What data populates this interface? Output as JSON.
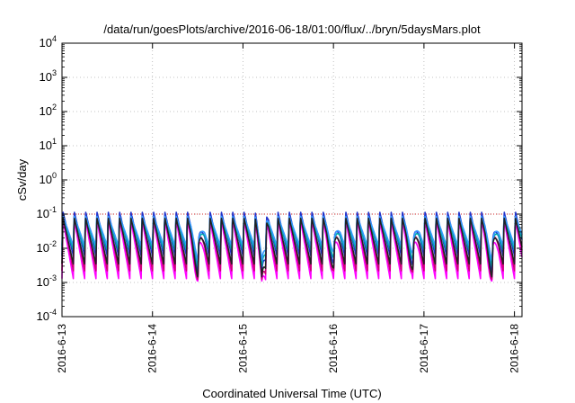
{
  "chart_data": {
    "type": "line",
    "title": "/data/run/goesPlots/archive/2016-06-18/01:00/flux/../bryn/5daysMars.plot",
    "xlabel": "Coordinated Universal Time (UTC)",
    "ylabel": "cSv/day",
    "yscale": "log",
    "ylim": [
      0.0001,
      10000
    ],
    "xlim": [
      "2016-06-13",
      "2016-06-18T02:00"
    ],
    "grid": true,
    "xticks": [
      "2016-6-13",
      "2016-6-14",
      "2016-6-15",
      "2016-6-16",
      "2016-6-17",
      "2016-6-18"
    ],
    "yticks": [
      {
        "base": "10",
        "exp": "-4",
        "value": 0.0001
      },
      {
        "base": "10",
        "exp": "-3",
        "value": 0.001
      },
      {
        "base": "10",
        "exp": "-2",
        "value": 0.01
      },
      {
        "base": "10",
        "exp": "-1",
        "value": 0.1
      },
      {
        "base": "10",
        "exp": "0",
        "value": 1
      },
      {
        "base": "10",
        "exp": "1",
        "value": 10
      },
      {
        "base": "10",
        "exp": "2",
        "value": 100
      },
      {
        "base": "10",
        "exp": "3",
        "value": 1000
      },
      {
        "base": "10",
        "exp": "4",
        "value": 10000
      }
    ],
    "reference_line": {
      "y": 0.1,
      "color": "#d62728",
      "style": "dotted"
    },
    "pattern": {
      "description": "sawtooth dose-rate traces repeating roughly every 3 hours",
      "period_hours": 3.0
    },
    "series": [
      {
        "color": "#ff00ff",
        "peak": 0.07,
        "trough": 0.0013
      },
      {
        "color": "#cc0077",
        "peak": 0.1,
        "trough": 0.0022
      },
      {
        "color": "#2233cc",
        "peak": 0.12,
        "trough": 0.006
      },
      {
        "color": "#00aaaa",
        "peak": 0.08,
        "trough": 0.009
      },
      {
        "color": "#3399ff",
        "peak": 0.09,
        "trough": 0.012
      },
      {
        "color": "#222222",
        "peak": 0.08,
        "trough": 0.0035
      }
    ],
    "dips": [
      {
        "x": "2016-06-14T12:00",
        "value": 0.0011
      },
      {
        "x": "2016-06-15T05:00",
        "value": 0.0011
      },
      {
        "x": "2016-06-16T00:00",
        "value": 0.002
      },
      {
        "x": "2016-06-16T21:00",
        "value": 0.0018
      },
      {
        "x": "2016-06-17T18:00",
        "value": 0.0011
      }
    ]
  }
}
